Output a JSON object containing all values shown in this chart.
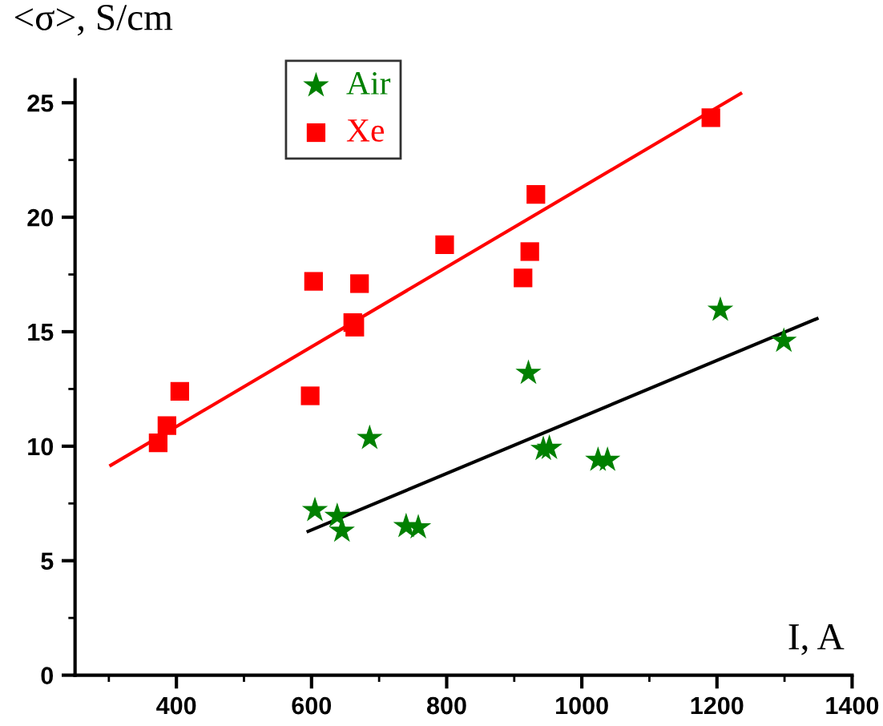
{
  "chart_data": {
    "type": "scatter",
    "xlabel": "I, A",
    "ylabel": "<σ>, S/cm",
    "series": [
      {
        "name": "Air",
        "color": "#008000",
        "marker": "star",
        "x": [
          605,
          638,
          645,
          686,
          740,
          758,
          921,
          943,
          952,
          1024,
          1038,
          1205,
          1299
        ],
        "values": [
          7.2,
          6.95,
          6.3,
          10.35,
          6.5,
          6.45,
          13.2,
          9.87,
          9.92,
          9.4,
          9.4,
          15.95,
          14.6
        ]
      },
      {
        "name": "Xe",
        "color": "#ff0000",
        "marker": "square",
        "x": [
          373,
          386,
          405,
          598,
          603,
          661,
          664,
          671,
          797,
          913,
          923,
          932,
          1191
        ],
        "values": [
          10.15,
          10.9,
          12.4,
          12.2,
          17.2,
          15.4,
          15.2,
          17.1,
          18.8,
          17.35,
          18.5,
          21.0,
          24.35
        ]
      },
      {
        "type": "line",
        "color": "#ff0000",
        "x": [
          303,
          1235
        ],
        "values": [
          9.17,
          25.4
        ]
      },
      {
        "type": "line",
        "color": "#000000",
        "x": [
          595,
          1348
        ],
        "values": [
          6.28,
          15.57
        ]
      }
    ],
    "xlim": [
      250,
      1400
    ],
    "xticks": [
      400,
      600,
      800,
      1000,
      1200,
      1400
    ],
    "ylim": [
      0,
      26
    ],
    "yticks": [
      0,
      5,
      10,
      15,
      20,
      25
    ],
    "grid": false,
    "legend": "top left"
  }
}
